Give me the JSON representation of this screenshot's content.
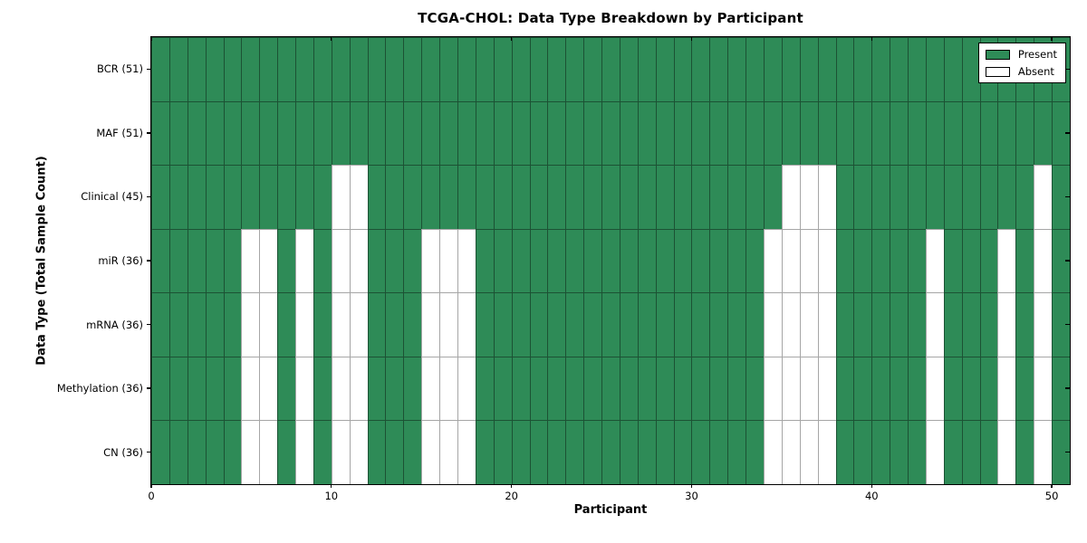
{
  "chart_data": {
    "type": "heatmap",
    "title": "TCGA-CHOL: Data Type Breakdown by Participant",
    "xlabel": "Participant",
    "ylabel": "Data Type (Total Sample Count)",
    "n_participants": 51,
    "x_range": [
      0,
      51
    ],
    "x_ticks": [
      0,
      10,
      20,
      30,
      40,
      50
    ],
    "grid": "cell-edges",
    "rows": [
      {
        "label": "BCR (51)",
        "data_type": "BCR",
        "present_count": 51,
        "absent_participants": []
      },
      {
        "label": "MAF (51)",
        "data_type": "MAF",
        "present_count": 51,
        "absent_participants": []
      },
      {
        "label": "Clinical (45)",
        "data_type": "Clinical",
        "present_count": 45,
        "absent_participants": [
          10,
          11,
          35,
          36,
          37,
          49
        ]
      },
      {
        "label": "miR (36)",
        "data_type": "miR",
        "present_count": 36,
        "absent_participants": [
          5,
          6,
          8,
          10,
          11,
          15,
          16,
          17,
          34,
          35,
          36,
          37,
          43,
          47,
          49
        ]
      },
      {
        "label": "mRNA (36)",
        "data_type": "mRNA",
        "present_count": 36,
        "absent_participants": [
          5,
          6,
          8,
          10,
          11,
          15,
          16,
          17,
          34,
          35,
          36,
          37,
          43,
          47,
          49
        ]
      },
      {
        "label": "Methylation (36)",
        "data_type": "Methylation",
        "present_count": 36,
        "absent_participants": [
          5,
          6,
          8,
          10,
          11,
          15,
          16,
          17,
          34,
          35,
          36,
          37,
          43,
          47,
          49
        ]
      },
      {
        "label": "CN (36)",
        "data_type": "CN",
        "present_count": 36,
        "absent_participants": [
          5,
          6,
          8,
          10,
          11,
          15,
          16,
          17,
          34,
          35,
          36,
          37,
          43,
          47,
          49
        ]
      }
    ],
    "legend": {
      "position": "top-right",
      "entries": [
        {
          "label": "Present",
          "color": "#2e8b57"
        },
        {
          "label": "Absent",
          "color": "#ffffff"
        }
      ]
    },
    "colors": {
      "present": "#2e8b57",
      "absent": "#ffffff",
      "present_edge": "#1c5234",
      "absent_edge": "#a6a6a6",
      "frame": "#000000"
    }
  }
}
